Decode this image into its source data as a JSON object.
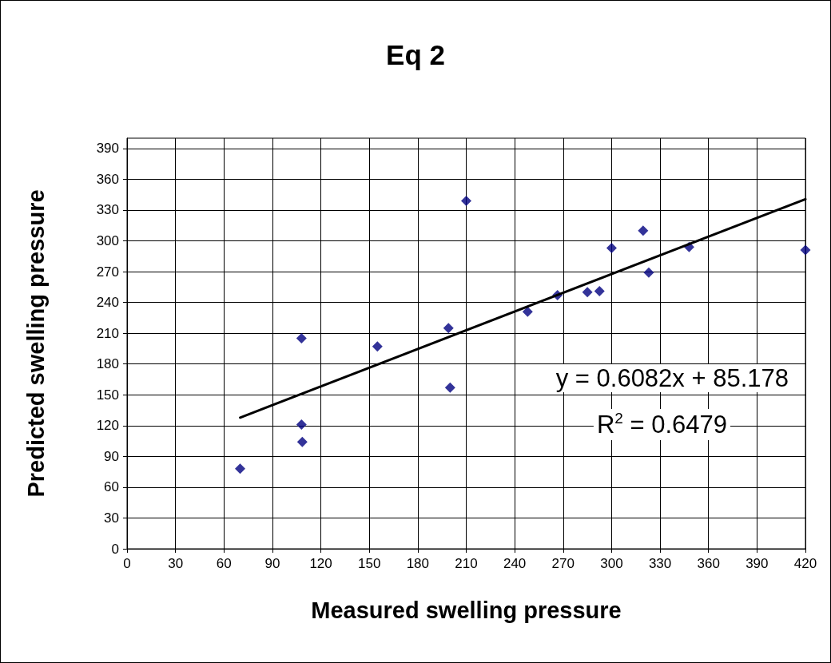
{
  "chart_data": {
    "type": "scatter",
    "title": "Eq 2",
    "xlabel": "Measured swelling pressure",
    "ylabel": "Predicted swelling pressure",
    "xlim": [
      0,
      420
    ],
    "xticks": [
      0,
      30,
      60,
      90,
      120,
      150,
      180,
      210,
      240,
      270,
      300,
      330,
      360,
      390,
      420
    ],
    "ylim": [
      0,
      400
    ],
    "yticks": [
      0,
      30,
      60,
      90,
      120,
      150,
      180,
      210,
      240,
      270,
      300,
      330,
      360,
      390
    ],
    "grid": true,
    "marker": "diamond",
    "series": [
      {
        "color": "#000080",
        "x": [
          70,
          108,
          108,
          108.5,
          155,
          199,
          200,
          210,
          248,
          266.5,
          285,
          292.5,
          300,
          319.5,
          323,
          348,
          420
        ],
        "values": [
          78,
          205,
          121,
          104,
          197,
          215,
          157,
          339,
          231,
          247,
          250,
          251,
          293,
          310,
          269,
          294,
          291
        ]
      },
      {
        "type": "line",
        "color": "#000000",
        "marker": "none",
        "x": [
          70,
          420
        ],
        "values": [
          127.8,
          340.6
        ]
      }
    ],
    "annotations": [
      "y = 0.6082x + 85.178",
      "R$^{2}$ = 0.6479"
    ]
  }
}
